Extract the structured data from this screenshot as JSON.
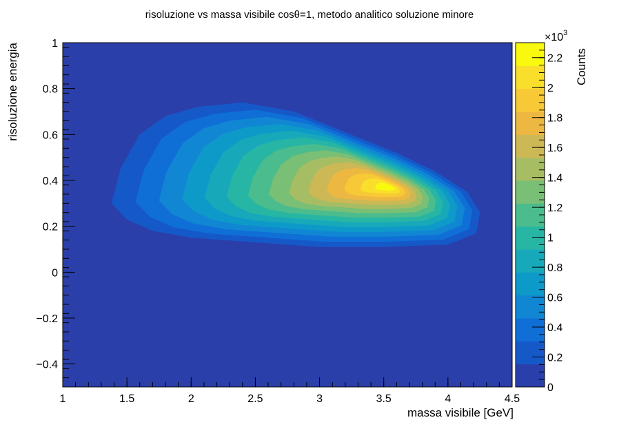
{
  "chart_data": {
    "type": "heatmap",
    "title": "risoluzione vs massa visibile cosθ=1,  metodo analitico soluzione minore",
    "xlabel": "massa visibile [GeV]",
    "ylabel": "risoluzione energia",
    "xlim": [
      1,
      4.5
    ],
    "ylim": [
      -0.5,
      1
    ],
    "x_ticks": [
      "1",
      "1.5",
      "2",
      "2.5",
      "3",
      "3.5",
      "4",
      "4.5"
    ],
    "y_ticks": [
      "−0.4",
      "−0.2",
      "0",
      "0.2",
      "0.4",
      "0.6",
      "0.8",
      "1"
    ],
    "colorbar": {
      "label": "Counts",
      "exponent_label": "×10",
      "exponent": "3",
      "range": [
        0,
        2.3
      ],
      "ticks": [
        "0",
        "0.2",
        "0.4",
        "0.6",
        "0.8",
        "1",
        "1.2",
        "1.4",
        "1.6",
        "1.8",
        "2",
        "2.2"
      ],
      "palette": [
        "#2b3faa",
        "#1559c9",
        "#0f6fd6",
        "#1187d4",
        "#0d9ac8",
        "#17a9ba",
        "#28b6a4",
        "#4bbc8d",
        "#79bf75",
        "#a7bd64",
        "#cdb856",
        "#ecb842",
        "#f8c936",
        "#f9de2b",
        "#f9f90f"
      ]
    },
    "distribution": {
      "peak_x": 3.55,
      "peak_y": 0.37,
      "peak_counts": 2.25,
      "support_x": [
        1.38,
        4.25
      ],
      "support_y": [
        0.11,
        0.74
      ]
    },
    "background_color": "#2b3faa",
    "grid": false
  }
}
